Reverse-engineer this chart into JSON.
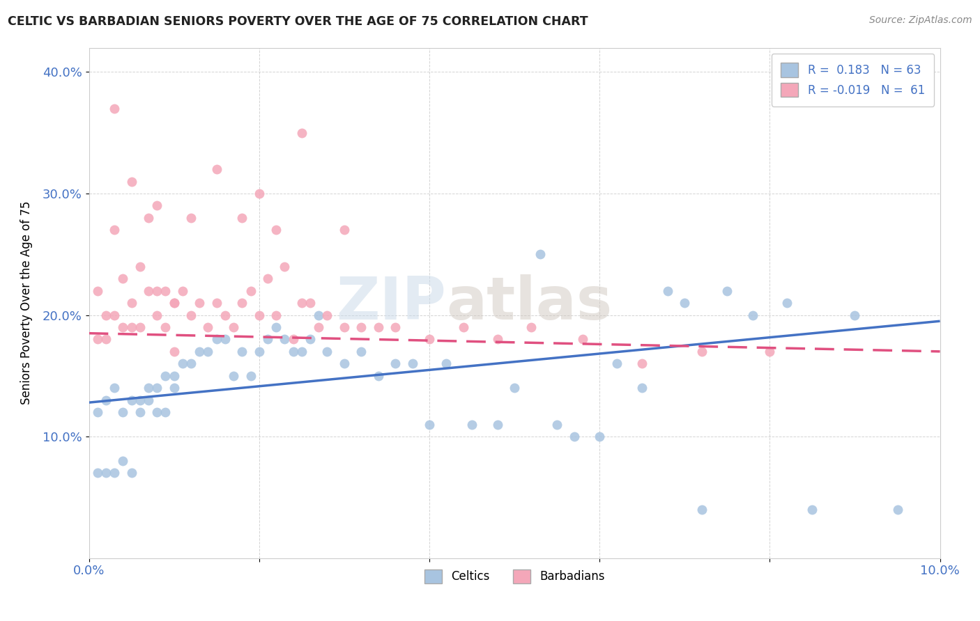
{
  "title": "CELTIC VS BARBADIAN SENIORS POVERTY OVER THE AGE OF 75 CORRELATION CHART",
  "source_text": "Source: ZipAtlas.com",
  "ylabel": "Seniors Poverty Over the Age of 75",
  "xlabel": "",
  "xlim": [
    0.0,
    0.1
  ],
  "ylim": [
    0.0,
    0.42
  ],
  "xticks": [
    0.0,
    0.02,
    0.04,
    0.06,
    0.08,
    0.1
  ],
  "yticks": [
    0.1,
    0.2,
    0.3,
    0.4
  ],
  "ytick_labels": [
    "10.0%",
    "20.0%",
    "30.0%",
    "40.0%"
  ],
  "xtick_labels": [
    "0.0%",
    "",
    "",
    "",
    "",
    "10.0%"
  ],
  "celtics_R": 0.183,
  "celtics_N": 63,
  "barbadians_R": -0.019,
  "barbadians_N": 61,
  "celtics_color": "#a8c4e0",
  "barbadians_color": "#f4a7b9",
  "celtics_line_color": "#4472c4",
  "barbadians_line_color": "#e05080",
  "watermark_1": "ZIP",
  "watermark_2": "atlas",
  "background_color": "#ffffff",
  "celtics_x": [
    0.001,
    0.001,
    0.002,
    0.002,
    0.003,
    0.003,
    0.004,
    0.004,
    0.005,
    0.005,
    0.006,
    0.006,
    0.007,
    0.007,
    0.008,
    0.008,
    0.009,
    0.009,
    0.01,
    0.01,
    0.011,
    0.012,
    0.013,
    0.014,
    0.015,
    0.016,
    0.017,
    0.018,
    0.019,
    0.02,
    0.021,
    0.022,
    0.023,
    0.024,
    0.025,
    0.026,
    0.027,
    0.028,
    0.03,
    0.032,
    0.034,
    0.036,
    0.038,
    0.04,
    0.042,
    0.045,
    0.048,
    0.05,
    0.053,
    0.055,
    0.057,
    0.06,
    0.062,
    0.065,
    0.068,
    0.07,
    0.072,
    0.075,
    0.078,
    0.082,
    0.085,
    0.09,
    0.095
  ],
  "celtics_y": [
    0.07,
    0.12,
    0.13,
    0.07,
    0.14,
    0.07,
    0.12,
    0.08,
    0.13,
    0.07,
    0.13,
    0.12,
    0.14,
    0.13,
    0.14,
    0.12,
    0.15,
    0.12,
    0.14,
    0.15,
    0.16,
    0.16,
    0.17,
    0.17,
    0.18,
    0.18,
    0.15,
    0.17,
    0.15,
    0.17,
    0.18,
    0.19,
    0.18,
    0.17,
    0.17,
    0.18,
    0.2,
    0.17,
    0.16,
    0.17,
    0.15,
    0.16,
    0.16,
    0.11,
    0.16,
    0.11,
    0.11,
    0.14,
    0.25,
    0.11,
    0.1,
    0.1,
    0.16,
    0.14,
    0.22,
    0.21,
    0.04,
    0.22,
    0.2,
    0.21,
    0.04,
    0.2,
    0.04
  ],
  "barbadians_x": [
    0.001,
    0.001,
    0.002,
    0.002,
    0.003,
    0.003,
    0.004,
    0.004,
    0.005,
    0.005,
    0.006,
    0.006,
    0.007,
    0.007,
    0.008,
    0.008,
    0.009,
    0.009,
    0.01,
    0.01,
    0.011,
    0.012,
    0.013,
    0.014,
    0.015,
    0.016,
    0.017,
    0.018,
    0.019,
    0.02,
    0.021,
    0.022,
    0.023,
    0.024,
    0.025,
    0.026,
    0.027,
    0.028,
    0.03,
    0.032,
    0.034,
    0.036,
    0.04,
    0.044,
    0.048,
    0.052,
    0.058,
    0.065,
    0.072,
    0.08,
    0.015,
    0.02,
    0.025,
    0.03,
    0.003,
    0.005,
    0.01,
    0.008,
    0.012,
    0.018,
    0.022
  ],
  "barbadians_y": [
    0.18,
    0.22,
    0.2,
    0.18,
    0.2,
    0.27,
    0.23,
    0.19,
    0.21,
    0.19,
    0.24,
    0.19,
    0.22,
    0.28,
    0.22,
    0.2,
    0.22,
    0.19,
    0.21,
    0.21,
    0.22,
    0.2,
    0.21,
    0.19,
    0.21,
    0.2,
    0.19,
    0.21,
    0.22,
    0.2,
    0.23,
    0.2,
    0.24,
    0.18,
    0.21,
    0.21,
    0.19,
    0.2,
    0.19,
    0.19,
    0.19,
    0.19,
    0.18,
    0.19,
    0.18,
    0.19,
    0.18,
    0.16,
    0.17,
    0.17,
    0.32,
    0.3,
    0.35,
    0.27,
    0.37,
    0.31,
    0.17,
    0.29,
    0.28,
    0.28,
    0.27
  ],
  "celtics_trend_x": [
    0.0,
    0.1
  ],
  "celtics_trend_y": [
    0.128,
    0.195
  ],
  "barbadians_trend_x": [
    0.0,
    0.1
  ],
  "barbadians_trend_y": [
    0.185,
    0.17
  ]
}
